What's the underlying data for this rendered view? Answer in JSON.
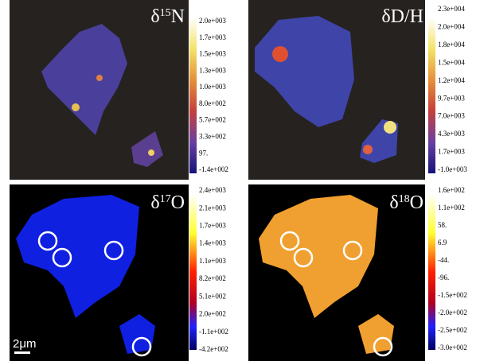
{
  "panels": [
    {
      "title": {
        "symbol": "δ",
        "mass": "15",
        "element": "N"
      },
      "colorbar_labels": [
        "2.0e+003",
        "1.7e+003",
        "1.5e+003",
        "1.3e+003",
        "1.0e+003",
        "8.0e+002",
        "5.7e+002",
        "3.3e+002",
        "97.",
        "-1.4e+002"
      ]
    },
    {
      "title": {
        "symbol": "δD/H"
      },
      "colorbar_labels": [
        "2.3e+004",
        "2.0e+004",
        "1.8e+004",
        "1.5e+004",
        "1.2e+004",
        "9.7e+003",
        "7.0e+003",
        "4.3e+003",
        "1.7e+003",
        "-1.0e+003"
      ]
    },
    {
      "title": {
        "symbol": "δ",
        "mass": "17",
        "element": "O"
      },
      "colorbar_labels": [
        "2.4e+003",
        "2.1e+003",
        "1.7e+003",
        "1.4e+003",
        "1.1e+003",
        "8.2e+002",
        "5.1e+002",
        "2.0e+002",
        "-1.1e+002",
        "-4.2e+002"
      ]
    },
    {
      "title": {
        "symbol": "δ",
        "mass": "18",
        "element": "O"
      },
      "colorbar_labels": [
        "1.6e+002",
        "1.1e+002",
        "58.",
        "6.9",
        "-44.",
        "-96.",
        "-1.5e+002",
        "-2.0e+002",
        "-2.5e+002",
        "-3.0e+002"
      ]
    }
  ],
  "scale_bar": "2μm"
}
